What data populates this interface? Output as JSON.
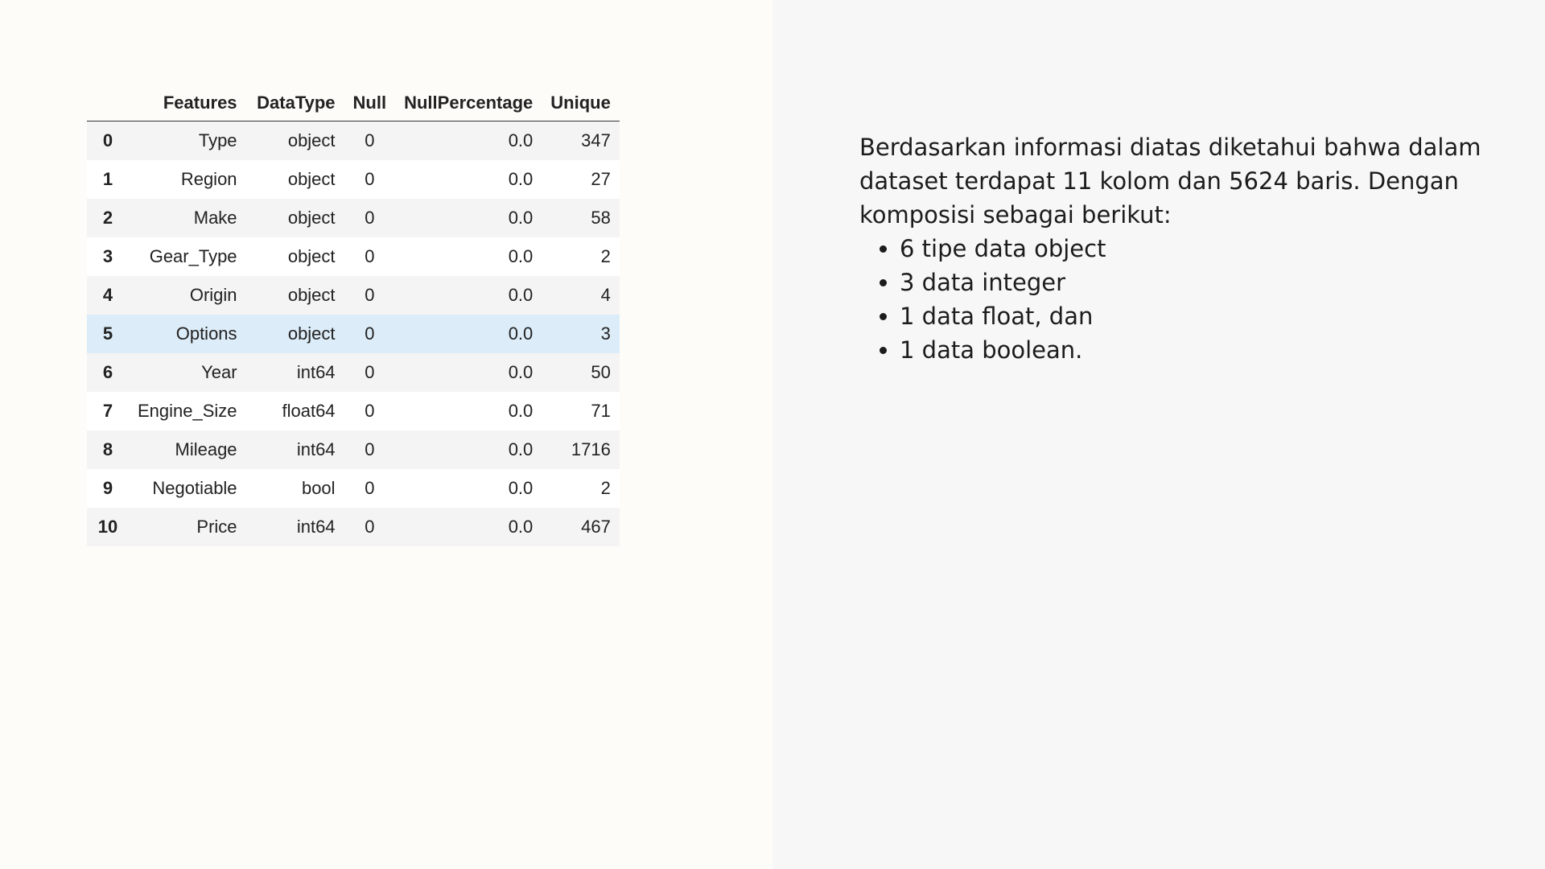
{
  "table": {
    "headers": [
      "",
      "Features",
      "DataType",
      "Null",
      "NullPercentage",
      "Unique"
    ],
    "rows": [
      {
        "index": "0",
        "feature": "Type",
        "dtype": "object",
        "null": "0",
        "null_pct": "0.0",
        "unique": "347"
      },
      {
        "index": "1",
        "feature": "Region",
        "dtype": "object",
        "null": "0",
        "null_pct": "0.0",
        "unique": "27"
      },
      {
        "index": "2",
        "feature": "Make",
        "dtype": "object",
        "null": "0",
        "null_pct": "0.0",
        "unique": "58"
      },
      {
        "index": "3",
        "feature": "Gear_Type",
        "dtype": "object",
        "null": "0",
        "null_pct": "0.0",
        "unique": "2"
      },
      {
        "index": "4",
        "feature": "Origin",
        "dtype": "object",
        "null": "0",
        "null_pct": "0.0",
        "unique": "4"
      },
      {
        "index": "5",
        "feature": "Options",
        "dtype": "object",
        "null": "0",
        "null_pct": "0.0",
        "unique": "3"
      },
      {
        "index": "6",
        "feature": "Year",
        "dtype": "int64",
        "null": "0",
        "null_pct": "0.0",
        "unique": "50"
      },
      {
        "index": "7",
        "feature": "Engine_Size",
        "dtype": "float64",
        "null": "0",
        "null_pct": "0.0",
        "unique": "71"
      },
      {
        "index": "8",
        "feature": "Mileage",
        "dtype": "int64",
        "null": "0",
        "null_pct": "0.0",
        "unique": "1716"
      },
      {
        "index": "9",
        "feature": "Negotiable",
        "dtype": "bool",
        "null": "0",
        "null_pct": "0.0",
        "unique": "2"
      },
      {
        "index": "10",
        "feature": "Price",
        "dtype": "int64",
        "null": "0",
        "null_pct": "0.0",
        "unique": "467"
      }
    ],
    "highlight_row": 5
  },
  "description": {
    "paragraph": "Berdasarkan informasi diatas diketahui bahwa dalam dataset terdapat 11 kolom dan 5624 baris. Dengan komposisi sebagai berikut:",
    "bullets": [
      "6 tipe data object",
      "3 data integer",
      "1 data float, dan",
      "1 data boolean."
    ]
  },
  "colors": {
    "left_background": "#fdfcf8",
    "right_background": "#f7f7f7",
    "row_highlight": "#dcecf8",
    "row_striped": "#f4f4f4"
  }
}
